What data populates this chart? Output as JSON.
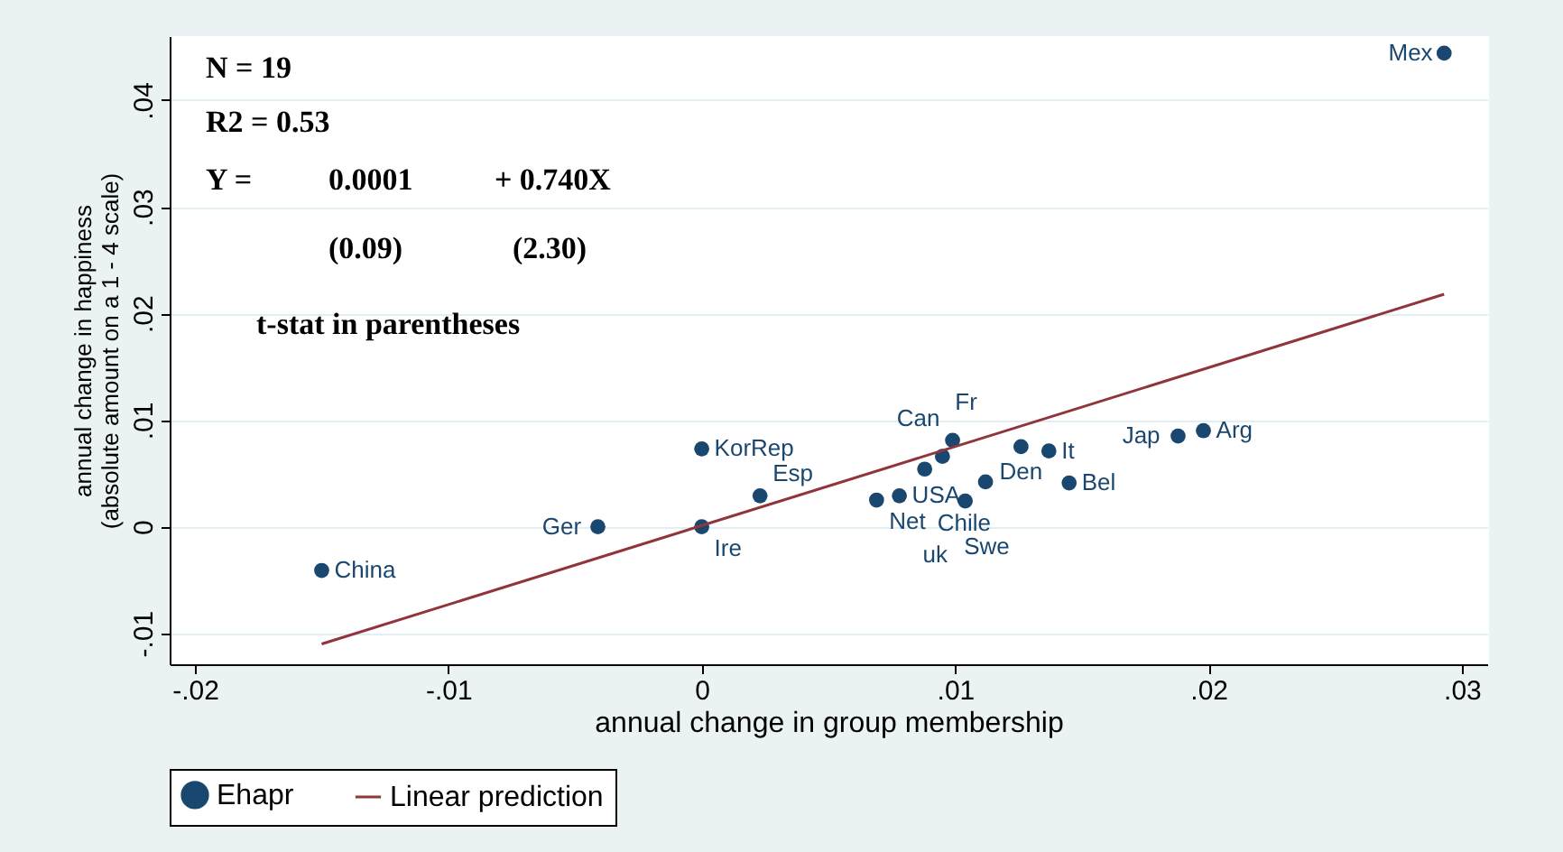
{
  "chart_data": {
    "type": "scatter",
    "xlabel": "annual change in group membership",
    "ylabel": "annual change in happiness\n(absolute amount on a 1 - 4 scale)",
    "xlim": [
      -0.021,
      0.031
    ],
    "ylim": [
      -0.0129,
      0.046
    ],
    "xticks": [
      {
        "value": -0.02,
        "label": "-.02"
      },
      {
        "value": -0.01,
        "label": "-.01"
      },
      {
        "value": 0,
        "label": "0"
      },
      {
        "value": 0.01,
        "label": ".01"
      },
      {
        "value": 0.02,
        "label": ".02"
      },
      {
        "value": 0.03,
        "label": ".03"
      }
    ],
    "yticks": [
      {
        "value": -0.01,
        "label": "-.01"
      },
      {
        "value": 0,
        "label": "0"
      },
      {
        "value": 0.01,
        "label": ".01"
      },
      {
        "value": 0.02,
        "label": ".02"
      },
      {
        "value": 0.03,
        "label": ".03"
      },
      {
        "value": 0.04,
        "label": ".04"
      }
    ],
    "grid": "y",
    "legend": "bottom",
    "annotations": [
      "N = 19",
      "R2 = 0.53",
      "Y =",
      "0.0001",
      "+ 0.740X",
      "(0.09)",
      "(2.30)",
      "t-stat in parentheses"
    ],
    "series": [
      {
        "name": "Ehapr",
        "type": "scatter",
        "color": "#1a476f",
        "marker": "circle",
        "x": [
          0.0293,
          0.0198,
          0.0188,
          0.0099,
          0.0126,
          0.0137,
          0.0095,
          0.0088,
          0.0112,
          0.0145,
          0.0078,
          0.0069,
          0.0104,
          0.0023,
          0,
          0,
          -0.0041,
          -0.015
        ],
        "values": [
          0.0444,
          0.009,
          0.0085,
          0.0081,
          0.0075,
          0.0071,
          0.0066,
          0.0054,
          0.0042,
          0.0041,
          0.0029,
          0.0025,
          0.0024,
          0.0029,
          0.0073,
          0,
          0,
          -0.0041
        ],
        "value_labels": [
          "Mex",
          "Arg",
          "Jap",
          "Can",
          "Den",
          "It",
          "Fr",
          "Chile",
          "Swe",
          "Bel",
          "USA",
          "Net",
          "uk",
          "Esp",
          "KorRep",
          "Ire",
          "Ger",
          "China"
        ]
      },
      {
        "name": "Linear prediction",
        "type": "line",
        "color": "#90353b",
        "x": [
          -0.015,
          0.0293
        ],
        "values": [
          -0.011,
          0.0218
        ]
      }
    ]
  }
}
